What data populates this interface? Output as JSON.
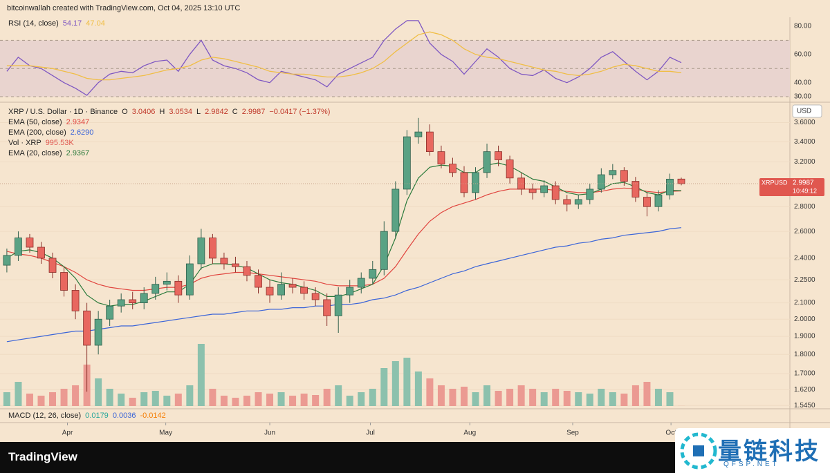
{
  "header": {
    "credit": "bitcoinwallah created with TradingView.com, Oct 04, 2025 13:10 UTC"
  },
  "footer": {
    "brand": "TradingView"
  },
  "watermark": {
    "name": "量链科技",
    "site": "QFSP.NET"
  },
  "chart_data": [
    {
      "type": "line",
      "title": "RSI (14, close)",
      "xlim": [
        -0.6,
        68.5
      ],
      "ylim": [
        26.6,
        85.4
      ],
      "band": [
        30,
        70
      ],
      "middle": 50,
      "band_color": "#e9d4cf",
      "yticks": [
        {
          "value": 80,
          "label": "80.00"
        },
        {
          "value": 60,
          "label": "60.00"
        },
        {
          "value": 40,
          "label": "40.00"
        },
        {
          "value": 30,
          "label": "30.00"
        }
      ],
      "series": [
        {
          "color": "#7e57c2",
          "values": [
            48,
            58,
            52,
            50,
            45,
            40,
            36,
            31,
            40,
            46,
            48,
            47,
            52,
            55,
            56,
            48,
            60,
            70,
            56,
            52,
            50,
            47,
            42,
            40,
            48,
            46,
            44,
            42,
            37,
            46,
            50,
            54,
            58,
            70,
            78,
            84,
            84,
            68,
            60,
            55,
            46,
            55,
            64,
            58,
            50,
            46,
            45,
            49,
            43,
            40,
            44,
            50,
            58,
            62,
            55,
            48,
            42,
            48,
            58,
            54.17
          ]
        },
        {
          "color": "#f0be45",
          "values": [
            52,
            52,
            52,
            51,
            50,
            48,
            46,
            43,
            42,
            42,
            43,
            44,
            45,
            47,
            49,
            50,
            52,
            56,
            58,
            57,
            55,
            53,
            51,
            48,
            47,
            46,
            46,
            45,
            44,
            44,
            45,
            47,
            50,
            55,
            62,
            68,
            74,
            76,
            74,
            70,
            64,
            60,
            58,
            57,
            55,
            53,
            51,
            49,
            48,
            46,
            45,
            46,
            48,
            51,
            53,
            52,
            50,
            48,
            48,
            47.04
          ]
        }
      ]
    },
    {
      "type": "candlestick",
      "title": "XRP / U.S. Dollar · 1D · Binance",
      "ohlc_prefixes": [
        "O",
        "H",
        "L",
        "C"
      ],
      "change_label": "−0.0417 (−1.37%)",
      "symbol": "XRPUSD",
      "currency": "USD",
      "countdown": "10:49:12",
      "up_color": "#5aa284",
      "down_color": "#e8675f",
      "xlim": [
        -0.6,
        68.5
      ],
      "ylim": [
        1.53,
        3.81
      ],
      "log_scale": true,
      "yticks": [
        {
          "value": 3.6,
          "label": "3.6000"
        },
        {
          "value": 3.4,
          "label": "3.4000"
        },
        {
          "value": 3.2,
          "label": "3.2000"
        },
        {
          "value": 2.8,
          "label": "2.8000"
        },
        {
          "value": 2.6,
          "label": "2.6000"
        },
        {
          "value": 2.4,
          "label": "2.4000"
        },
        {
          "value": 2.25,
          "label": "2.2500"
        },
        {
          "value": 2.1,
          "label": "2.1000"
        },
        {
          "value": 2.0,
          "label": "2.0000"
        },
        {
          "value": 1.9,
          "label": "1.9000"
        },
        {
          "value": 1.8,
          "label": "1.8000"
        },
        {
          "value": 1.7,
          "label": "1.7000"
        },
        {
          "value": 1.62,
          "label": "1.6200"
        },
        {
          "value": 1.545,
          "label": "1.5450"
        }
      ],
      "xticks": [
        {
          "value": 5.3,
          "label": "Apr"
        },
        {
          "value": 13.9,
          "label": "May"
        },
        {
          "value": 23.0,
          "label": "Jun"
        },
        {
          "value": 31.8,
          "label": "Jul"
        },
        {
          "value": 40.5,
          "label": "Aug"
        },
        {
          "value": 49.5,
          "label": "Sep"
        },
        {
          "value": 58.1,
          "label": "Oct"
        }
      ],
      "open": [
        2.35,
        2.42,
        2.55,
        2.48,
        2.4,
        2.3,
        2.18,
        2.05,
        1.85,
        2.0,
        2.08,
        2.12,
        2.1,
        2.16,
        2.22,
        2.24,
        2.15,
        2.36,
        2.55,
        2.4,
        2.36,
        2.34,
        2.28,
        2.2,
        2.15,
        2.22,
        2.2,
        2.16,
        2.12,
        2.02,
        2.15,
        2.2,
        2.26,
        2.32,
        2.6,
        2.95,
        3.45,
        3.5,
        3.3,
        3.18,
        3.1,
        2.92,
        3.1,
        3.3,
        3.22,
        3.05,
        2.95,
        2.92,
        2.98,
        2.86,
        2.82,
        2.86,
        2.95,
        3.08,
        3.12,
        3.02,
        2.88,
        2.8,
        2.9,
        3.0406
      ],
      "high": [
        2.47,
        2.6,
        2.58,
        2.52,
        2.44,
        2.34,
        2.22,
        2.1,
        2.05,
        2.12,
        2.16,
        2.17,
        2.2,
        2.27,
        2.3,
        2.28,
        2.42,
        2.62,
        2.58,
        2.44,
        2.41,
        2.38,
        2.32,
        2.25,
        2.3,
        2.26,
        2.24,
        2.2,
        2.16,
        2.2,
        2.25,
        2.3,
        2.38,
        2.68,
        3.02,
        3.52,
        3.65,
        3.58,
        3.36,
        3.24,
        3.16,
        3.15,
        3.38,
        3.36,
        3.26,
        3.1,
        3.0,
        3.03,
        3.02,
        2.9,
        2.9,
        3.0,
        3.14,
        3.18,
        3.15,
        3.06,
        2.92,
        2.94,
        3.09,
        3.0534
      ],
      "low": [
        2.3,
        2.38,
        2.44,
        2.36,
        2.26,
        2.14,
        2.0,
        1.61,
        1.8,
        1.96,
        2.04,
        2.06,
        2.06,
        2.12,
        2.18,
        2.1,
        2.12,
        2.32,
        2.36,
        2.32,
        2.3,
        2.24,
        2.16,
        2.1,
        2.12,
        2.16,
        2.12,
        2.08,
        1.96,
        1.92,
        2.1,
        2.16,
        2.22,
        2.28,
        2.55,
        2.9,
        3.38,
        3.26,
        3.14,
        3.06,
        2.88,
        2.86,
        3.05,
        3.16,
        3.0,
        2.9,
        2.86,
        2.88,
        2.82,
        2.76,
        2.78,
        2.82,
        2.92,
        3.04,
        2.98,
        2.84,
        2.72,
        2.76,
        2.86,
        2.9842
      ],
      "close": [
        2.42,
        2.55,
        2.48,
        2.4,
        2.3,
        2.18,
        2.05,
        1.85,
        2.0,
        2.08,
        2.12,
        2.1,
        2.16,
        2.22,
        2.24,
        2.15,
        2.36,
        2.55,
        2.4,
        2.36,
        2.34,
        2.28,
        2.2,
        2.15,
        2.22,
        2.2,
        2.16,
        2.12,
        2.02,
        2.15,
        2.2,
        2.26,
        2.32,
        2.6,
        2.95,
        3.45,
        3.5,
        3.3,
        3.18,
        3.1,
        2.92,
        3.1,
        3.3,
        3.22,
        3.05,
        2.95,
        2.92,
        2.98,
        2.86,
        2.82,
        2.86,
        2.95,
        3.08,
        3.12,
        3.02,
        2.88,
        2.8,
        2.9,
        3.04,
        2.9987
      ],
      "overlays": [
        {
          "name": "EMA (50, close)",
          "color": "#e0443e",
          "values": [
            2.45,
            2.43,
            2.42,
            2.4,
            2.37,
            2.34,
            2.3,
            2.25,
            2.22,
            2.2,
            2.19,
            2.18,
            2.18,
            2.19,
            2.2,
            2.2,
            2.22,
            2.26,
            2.28,
            2.29,
            2.3,
            2.3,
            2.29,
            2.28,
            2.27,
            2.26,
            2.25,
            2.24,
            2.22,
            2.21,
            2.21,
            2.21,
            2.22,
            2.26,
            2.34,
            2.46,
            2.58,
            2.68,
            2.75,
            2.8,
            2.83,
            2.86,
            2.9,
            2.93,
            2.95,
            2.95,
            2.95,
            2.95,
            2.94,
            2.93,
            2.92,
            2.92,
            2.93,
            2.95,
            2.96,
            2.95,
            2.93,
            2.92,
            2.93,
            2.9347
          ]
        },
        {
          "name": "EMA (200, close)",
          "color": "#3a64d8",
          "last_label": "2.6290",
          "values": [
            1.87,
            1.88,
            1.89,
            1.9,
            1.91,
            1.92,
            1.93,
            1.93,
            1.94,
            1.95,
            1.96,
            1.96,
            1.97,
            1.98,
            1.99,
            2.0,
            2.01,
            2.02,
            2.03,
            2.03,
            2.04,
            2.05,
            2.05,
            2.06,
            2.06,
            2.07,
            2.07,
            2.08,
            2.08,
            2.09,
            2.09,
            2.1,
            2.12,
            2.13,
            2.15,
            2.18,
            2.2,
            2.23,
            2.26,
            2.29,
            2.31,
            2.34,
            2.36,
            2.38,
            2.4,
            2.42,
            2.44,
            2.46,
            2.48,
            2.49,
            2.51,
            2.52,
            2.54,
            2.55,
            2.57,
            2.58,
            2.59,
            2.6,
            2.62,
            2.629
          ]
        },
        {
          "name": "EMA (20, close)",
          "color": "#2a7a3b",
          "values": [
            2.4,
            2.45,
            2.46,
            2.44,
            2.4,
            2.34,
            2.26,
            2.15,
            2.1,
            2.08,
            2.09,
            2.09,
            2.11,
            2.14,
            2.17,
            2.17,
            2.22,
            2.33,
            2.36,
            2.36,
            2.35,
            2.33,
            2.29,
            2.25,
            2.23,
            2.22,
            2.2,
            2.18,
            2.14,
            2.14,
            2.16,
            2.19,
            2.22,
            2.35,
            2.55,
            2.85,
            3.05,
            3.15,
            3.17,
            3.16,
            3.1,
            3.1,
            3.17,
            3.19,
            3.16,
            3.1,
            3.04,
            3.02,
            2.97,
            2.92,
            2.9,
            2.91,
            2.95,
            3.0,
            3.01,
            2.97,
            2.92,
            2.9,
            2.94,
            2.9367
          ]
        }
      ],
      "volume": {
        "name": "Vol · XRP",
        "ylim": [
          0,
          1000
        ],
        "last_label": "995.53K",
        "values": [
          200,
          350,
          180,
          150,
          200,
          250,
          300,
          600,
          400,
          250,
          180,
          120,
          200,
          220,
          150,
          180,
          300,
          900,
          250,
          150,
          120,
          150,
          200,
          180,
          200,
          150,
          180,
          160,
          250,
          300,
          150,
          200,
          250,
          550,
          650,
          700,
          500,
          400,
          300,
          250,
          280,
          200,
          300,
          220,
          250,
          300,
          250,
          200,
          250,
          220,
          200,
          180,
          250,
          200,
          180,
          300,
          350,
          250,
          200,
          0.99553
        ]
      }
    },
    {
      "type": "indicator",
      "title": "MACD (12, 26, close)",
      "values": [
        0.0179,
        0.0036,
        -0.0142
      ],
      "colors": [
        "#26a69a",
        "#3a64d8",
        "#f57c00"
      ]
    }
  ]
}
